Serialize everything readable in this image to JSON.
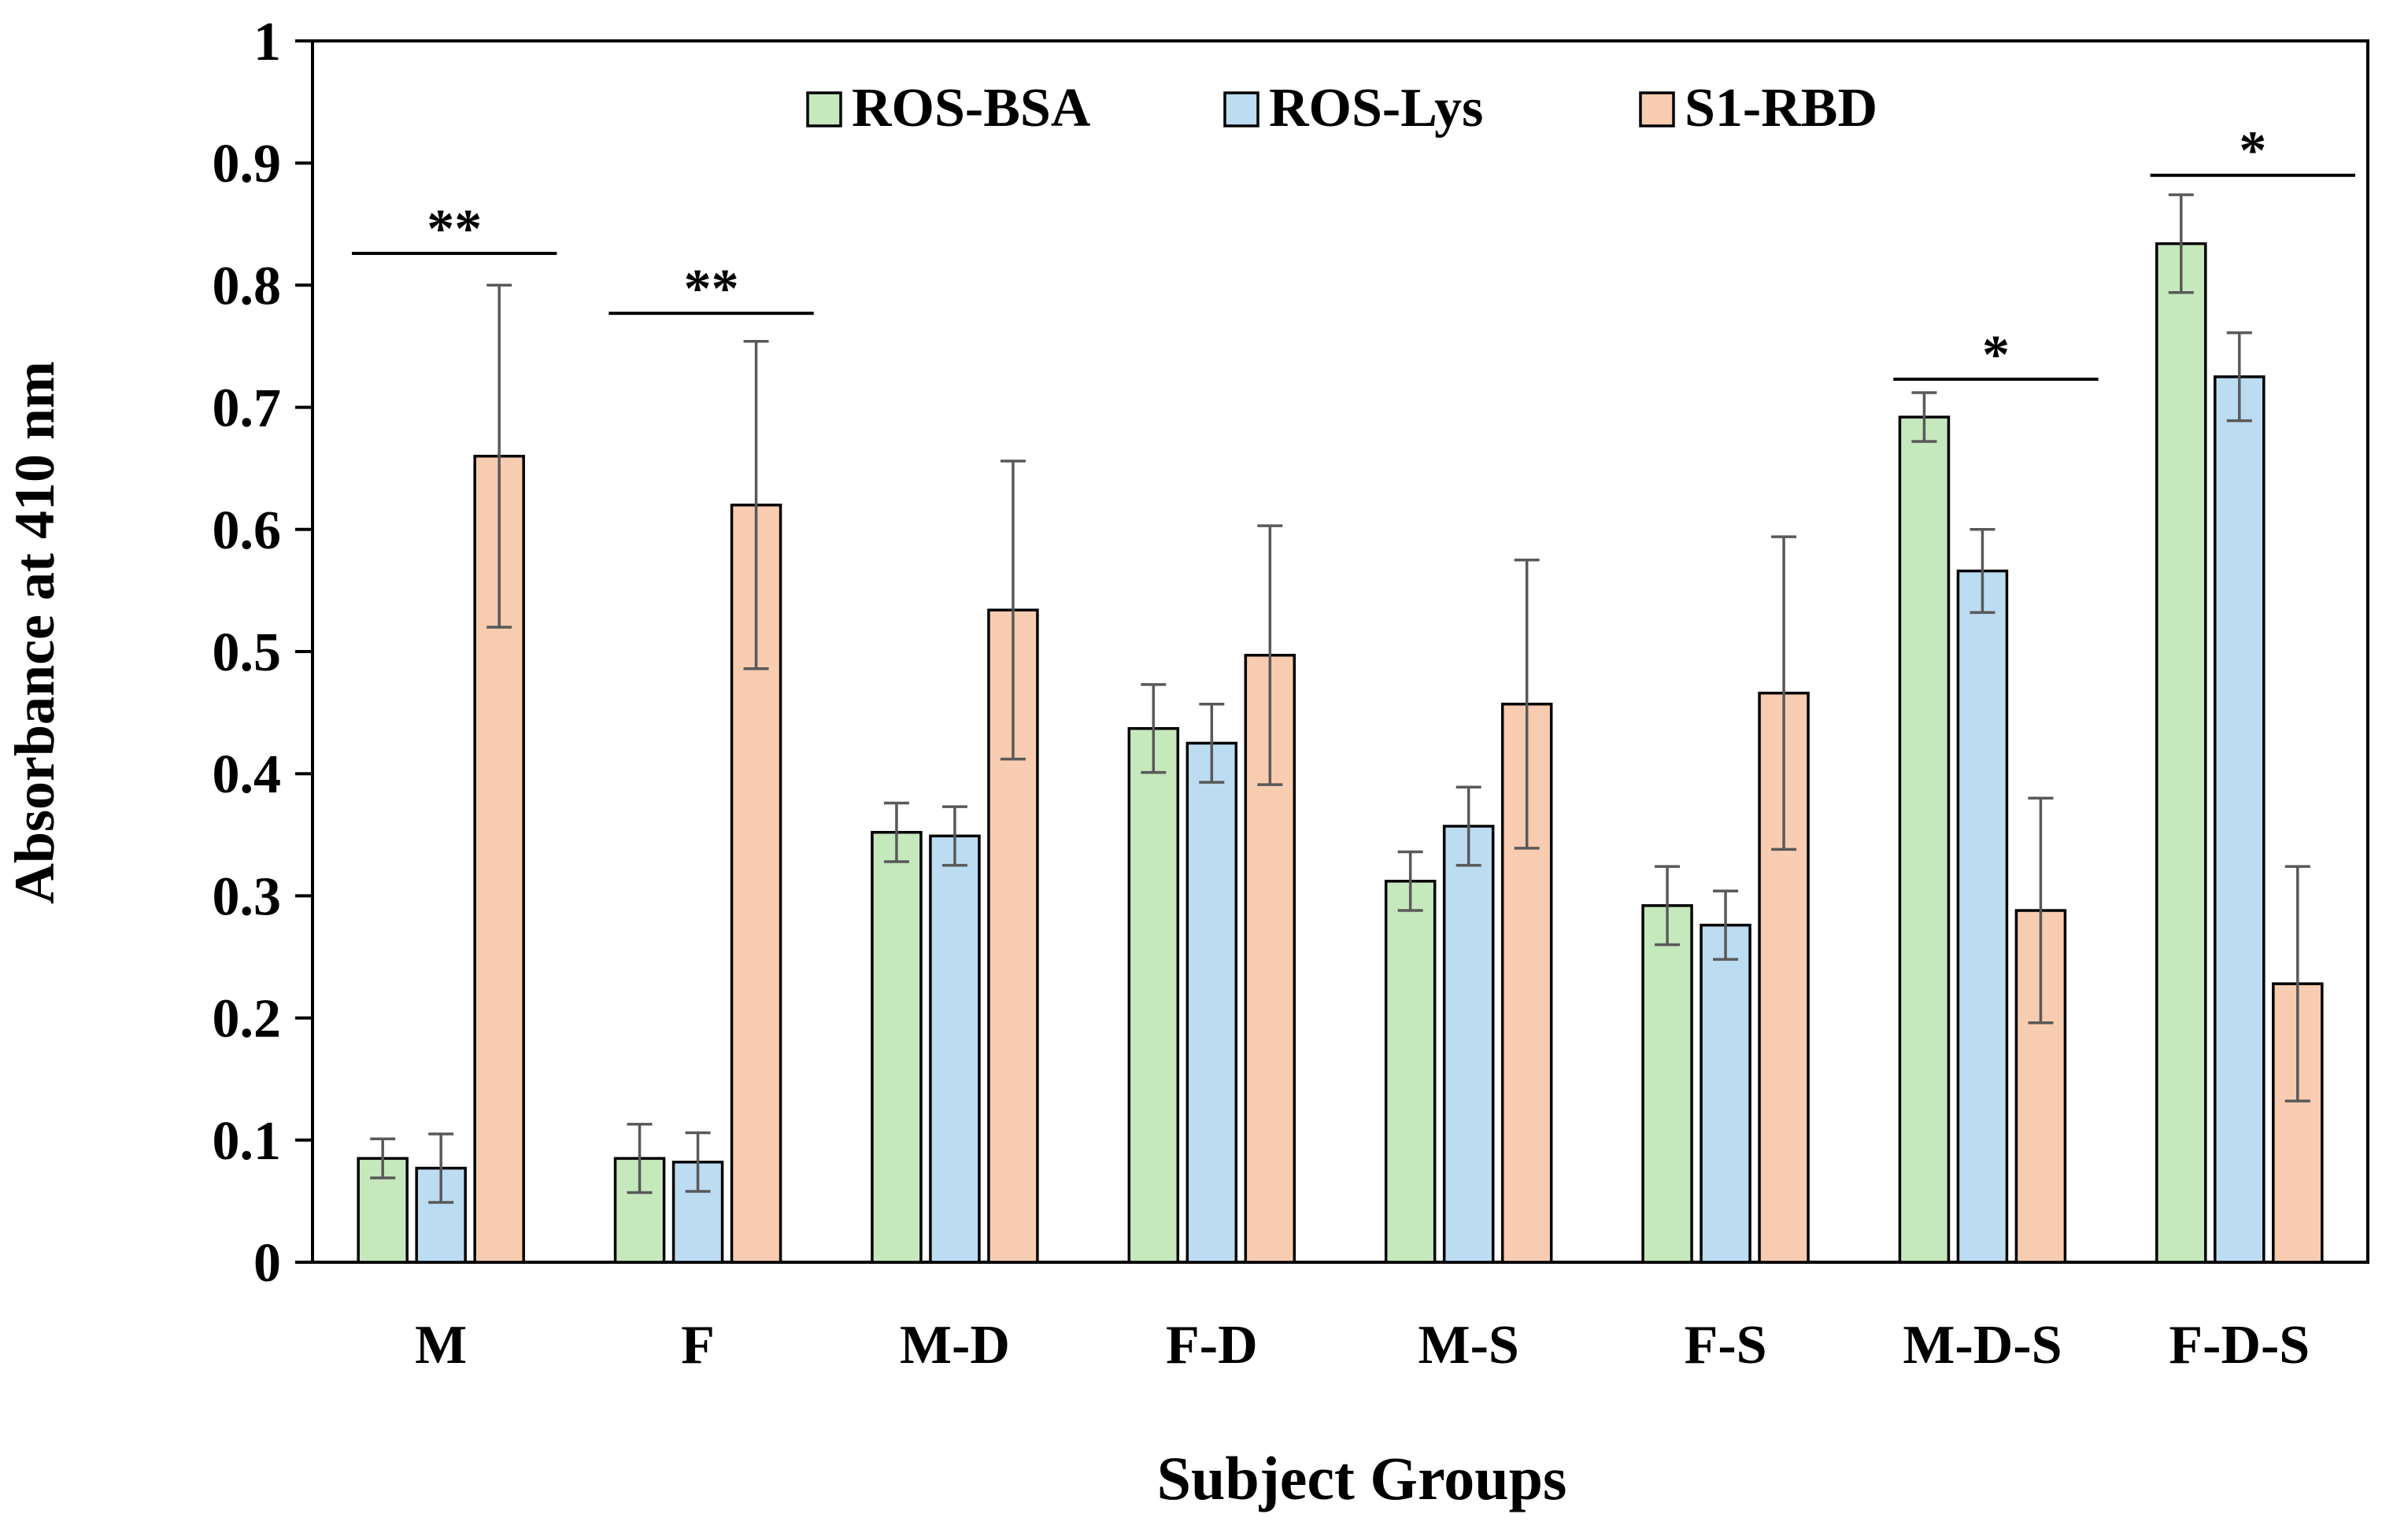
{
  "chart_data": {
    "type": "bar",
    "title": "",
    "xlabel": "Subject Groups",
    "ylabel": "Absorbance at 410 nm",
    "ylim": [
      0,
      1
    ],
    "yticks": [
      0,
      0.1,
      0.2,
      0.3,
      0.4,
      0.5,
      0.6,
      0.7,
      0.8,
      0.9,
      1
    ],
    "ytick_labels": [
      "0",
      "0.1",
      "0.2",
      "0.3",
      "0.4",
      "0.5",
      "0.6",
      "0.7",
      "0.8",
      "0.9",
      "1"
    ],
    "grid": false,
    "legend_position": "top",
    "categories": [
      "M",
      "F",
      "M-D",
      "F-D",
      "M-S",
      "F-S",
      "M-D-S",
      "F-D-S"
    ],
    "series": [
      {
        "name": "ROS-BSA",
        "color": "#c6e8bd",
        "values": [
          0.085,
          0.085,
          0.352,
          0.437,
          0.312,
          0.292,
          0.692,
          0.834
        ],
        "errors": [
          0.016,
          0.028,
          0.024,
          0.036,
          0.024,
          0.032,
          0.02,
          0.04
        ]
      },
      {
        "name": "ROS-Lys",
        "color": "#bcdcf2",
        "values": [
          0.077,
          0.082,
          0.349,
          0.425,
          0.357,
          0.276,
          0.566,
          0.725
        ],
        "errors": [
          0.028,
          0.024,
          0.024,
          0.032,
          0.032,
          0.028,
          0.034,
          0.036
        ]
      },
      {
        "name": "S1-RBD",
        "color": "#f8ccb0",
        "values": [
          0.66,
          0.62,
          0.534,
          0.497,
          0.457,
          0.466,
          0.288,
          0.228
        ],
        "errors": [
          0.14,
          0.134,
          0.122,
          0.106,
          0.118,
          0.128,
          0.092,
          0.096
        ]
      }
    ],
    "annotations": [
      {
        "text": "**",
        "group_start": 0,
        "group_end": 0,
        "y": 0.826
      },
      {
        "text": "**",
        "group_start": 1,
        "group_end": 1,
        "y": 0.777
      },
      {
        "text": "*",
        "group_start": 6,
        "group_end": 6,
        "y": 0.723
      },
      {
        "text": "*",
        "group_start": 7,
        "group_end": 7,
        "y": 0.89
      }
    ]
  }
}
